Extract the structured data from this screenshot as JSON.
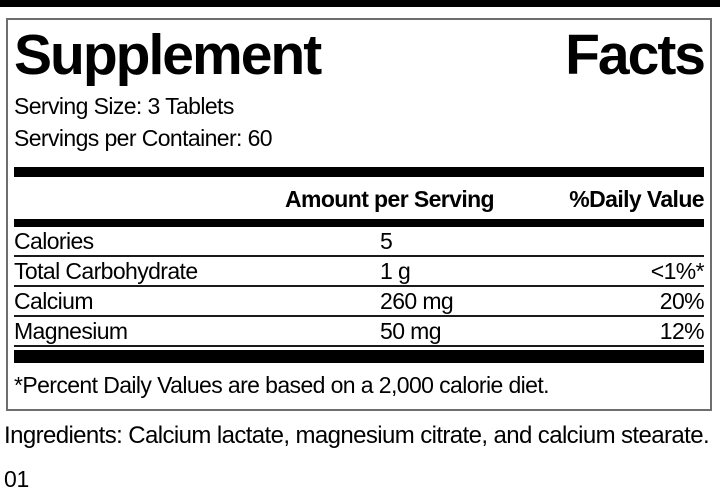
{
  "label": {
    "title_words": [
      "Supplement",
      "Facts"
    ],
    "serving_size": "Serving Size: 3 Tablets",
    "servings_per_container": "Servings per Container: 60",
    "columns": {
      "amount": "Amount per Serving",
      "daily_value": "%Daily Value"
    },
    "rows": [
      {
        "name": "Calories",
        "amount": "5",
        "daily_value": ""
      },
      {
        "name": "Total Carbohydrate",
        "amount": "1 g",
        "daily_value": "<1%*"
      },
      {
        "name": "Calcium",
        "amount": "260 mg",
        "daily_value": "20%"
      },
      {
        "name": "Magnesium",
        "amount": "50 mg",
        "daily_value": "12%"
      }
    ],
    "footnote": "*Percent Daily Values are based on a 2,000 calorie diet."
  },
  "ingredients": "Ingredients: Calcium lactate, magnesium citrate, and calcium stearate.",
  "footer_code": "01",
  "colors": {
    "text": "#000000",
    "bar": "#000000",
    "box_border": "#6e6e6e",
    "background": "#ffffff"
  }
}
